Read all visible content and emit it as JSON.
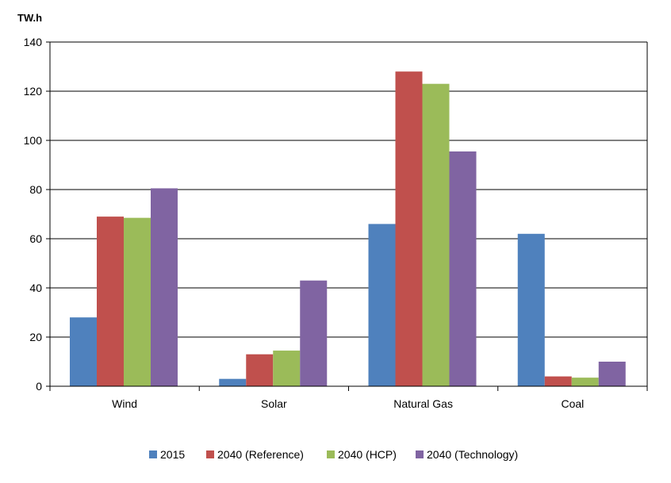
{
  "chart_data": {
    "type": "bar",
    "title": "",
    "unit_label": "TW.h",
    "xlabel": "",
    "ylabel": "",
    "categories": [
      "Wind",
      "Solar",
      "Natural Gas",
      "Coal"
    ],
    "series": [
      {
        "name": "2015",
        "color": "#4F81BD",
        "values": [
          28,
          3,
          66,
          62
        ]
      },
      {
        "name": "2040 (Reference)",
        "color": "#C0504D",
        "values": [
          69,
          13,
          128,
          4
        ]
      },
      {
        "name": "2040 (HCP)",
        "color": "#9BBB59",
        "values": [
          68.5,
          14.5,
          123,
          3.5
        ]
      },
      {
        "name": "2040 (Technology)",
        "color": "#8064A2",
        "values": [
          80.5,
          43,
          95.5,
          10
        ]
      }
    ],
    "ylim": [
      0,
      140
    ],
    "yticks": [
      0,
      20,
      40,
      60,
      80,
      100,
      120,
      140
    ],
    "grid": true,
    "legend_position": "bottom"
  }
}
